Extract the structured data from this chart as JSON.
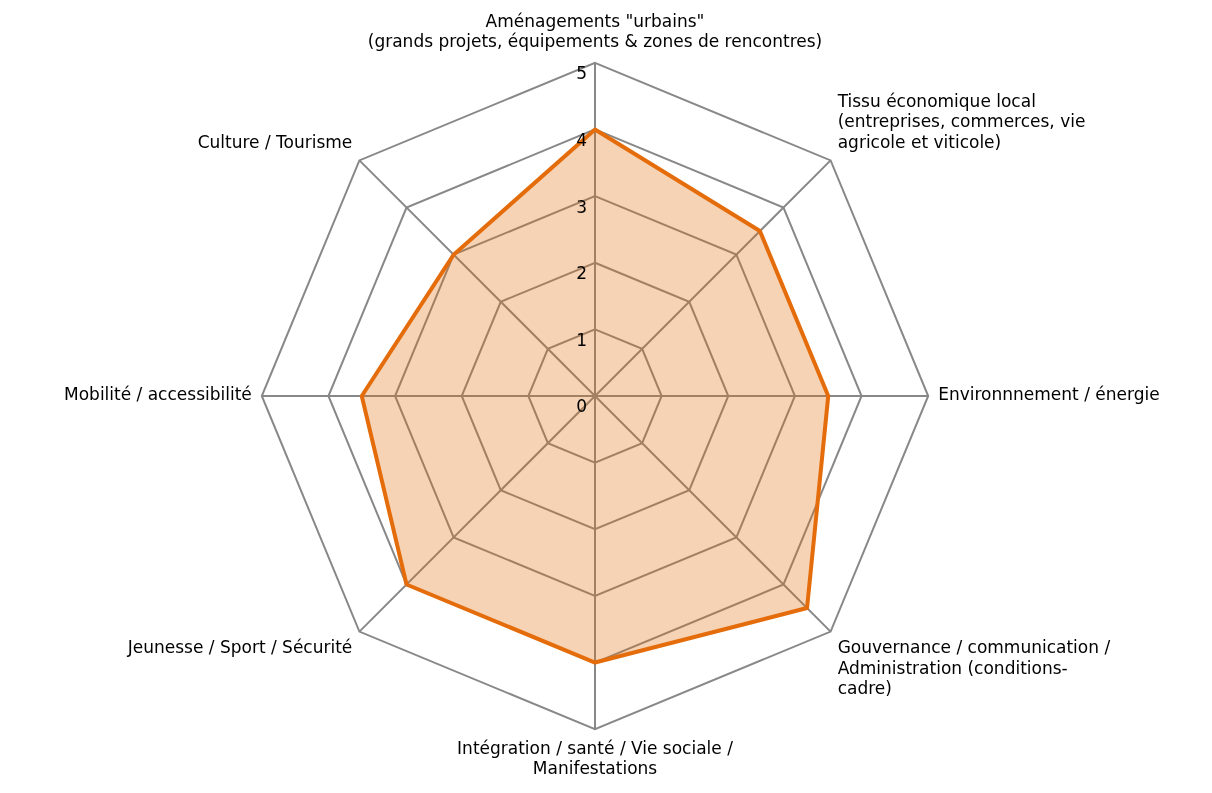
{
  "chart_data": {
    "type": "radar",
    "categories": [
      "Aménagements \"urbains\"\n(grands projets, équipements & zones de rencontres)",
      "Tissu économique local\n(entreprises, commerces, vie\nagricole et viticole)",
      "Environnnement / énergie",
      "Gouvernance / communication /\nAdministration (conditions-\ncadre)",
      "Intégration / santé / Vie sociale /\nManifestations",
      "Jeunesse / Sport / Sécurité",
      "Mobilité / accessibilité",
      "Culture / Tourisme"
    ],
    "series": [
      {
        "color": "#e46c0a",
        "values": [
          4,
          3.5,
          3.5,
          4.5,
          4,
          4,
          3.5,
          3
        ]
      }
    ],
    "ylim": [
      0,
      5
    ],
    "yticks": [
      0,
      1,
      2,
      3,
      4,
      5
    ],
    "grid": true,
    "legend": false,
    "marker": "none"
  }
}
